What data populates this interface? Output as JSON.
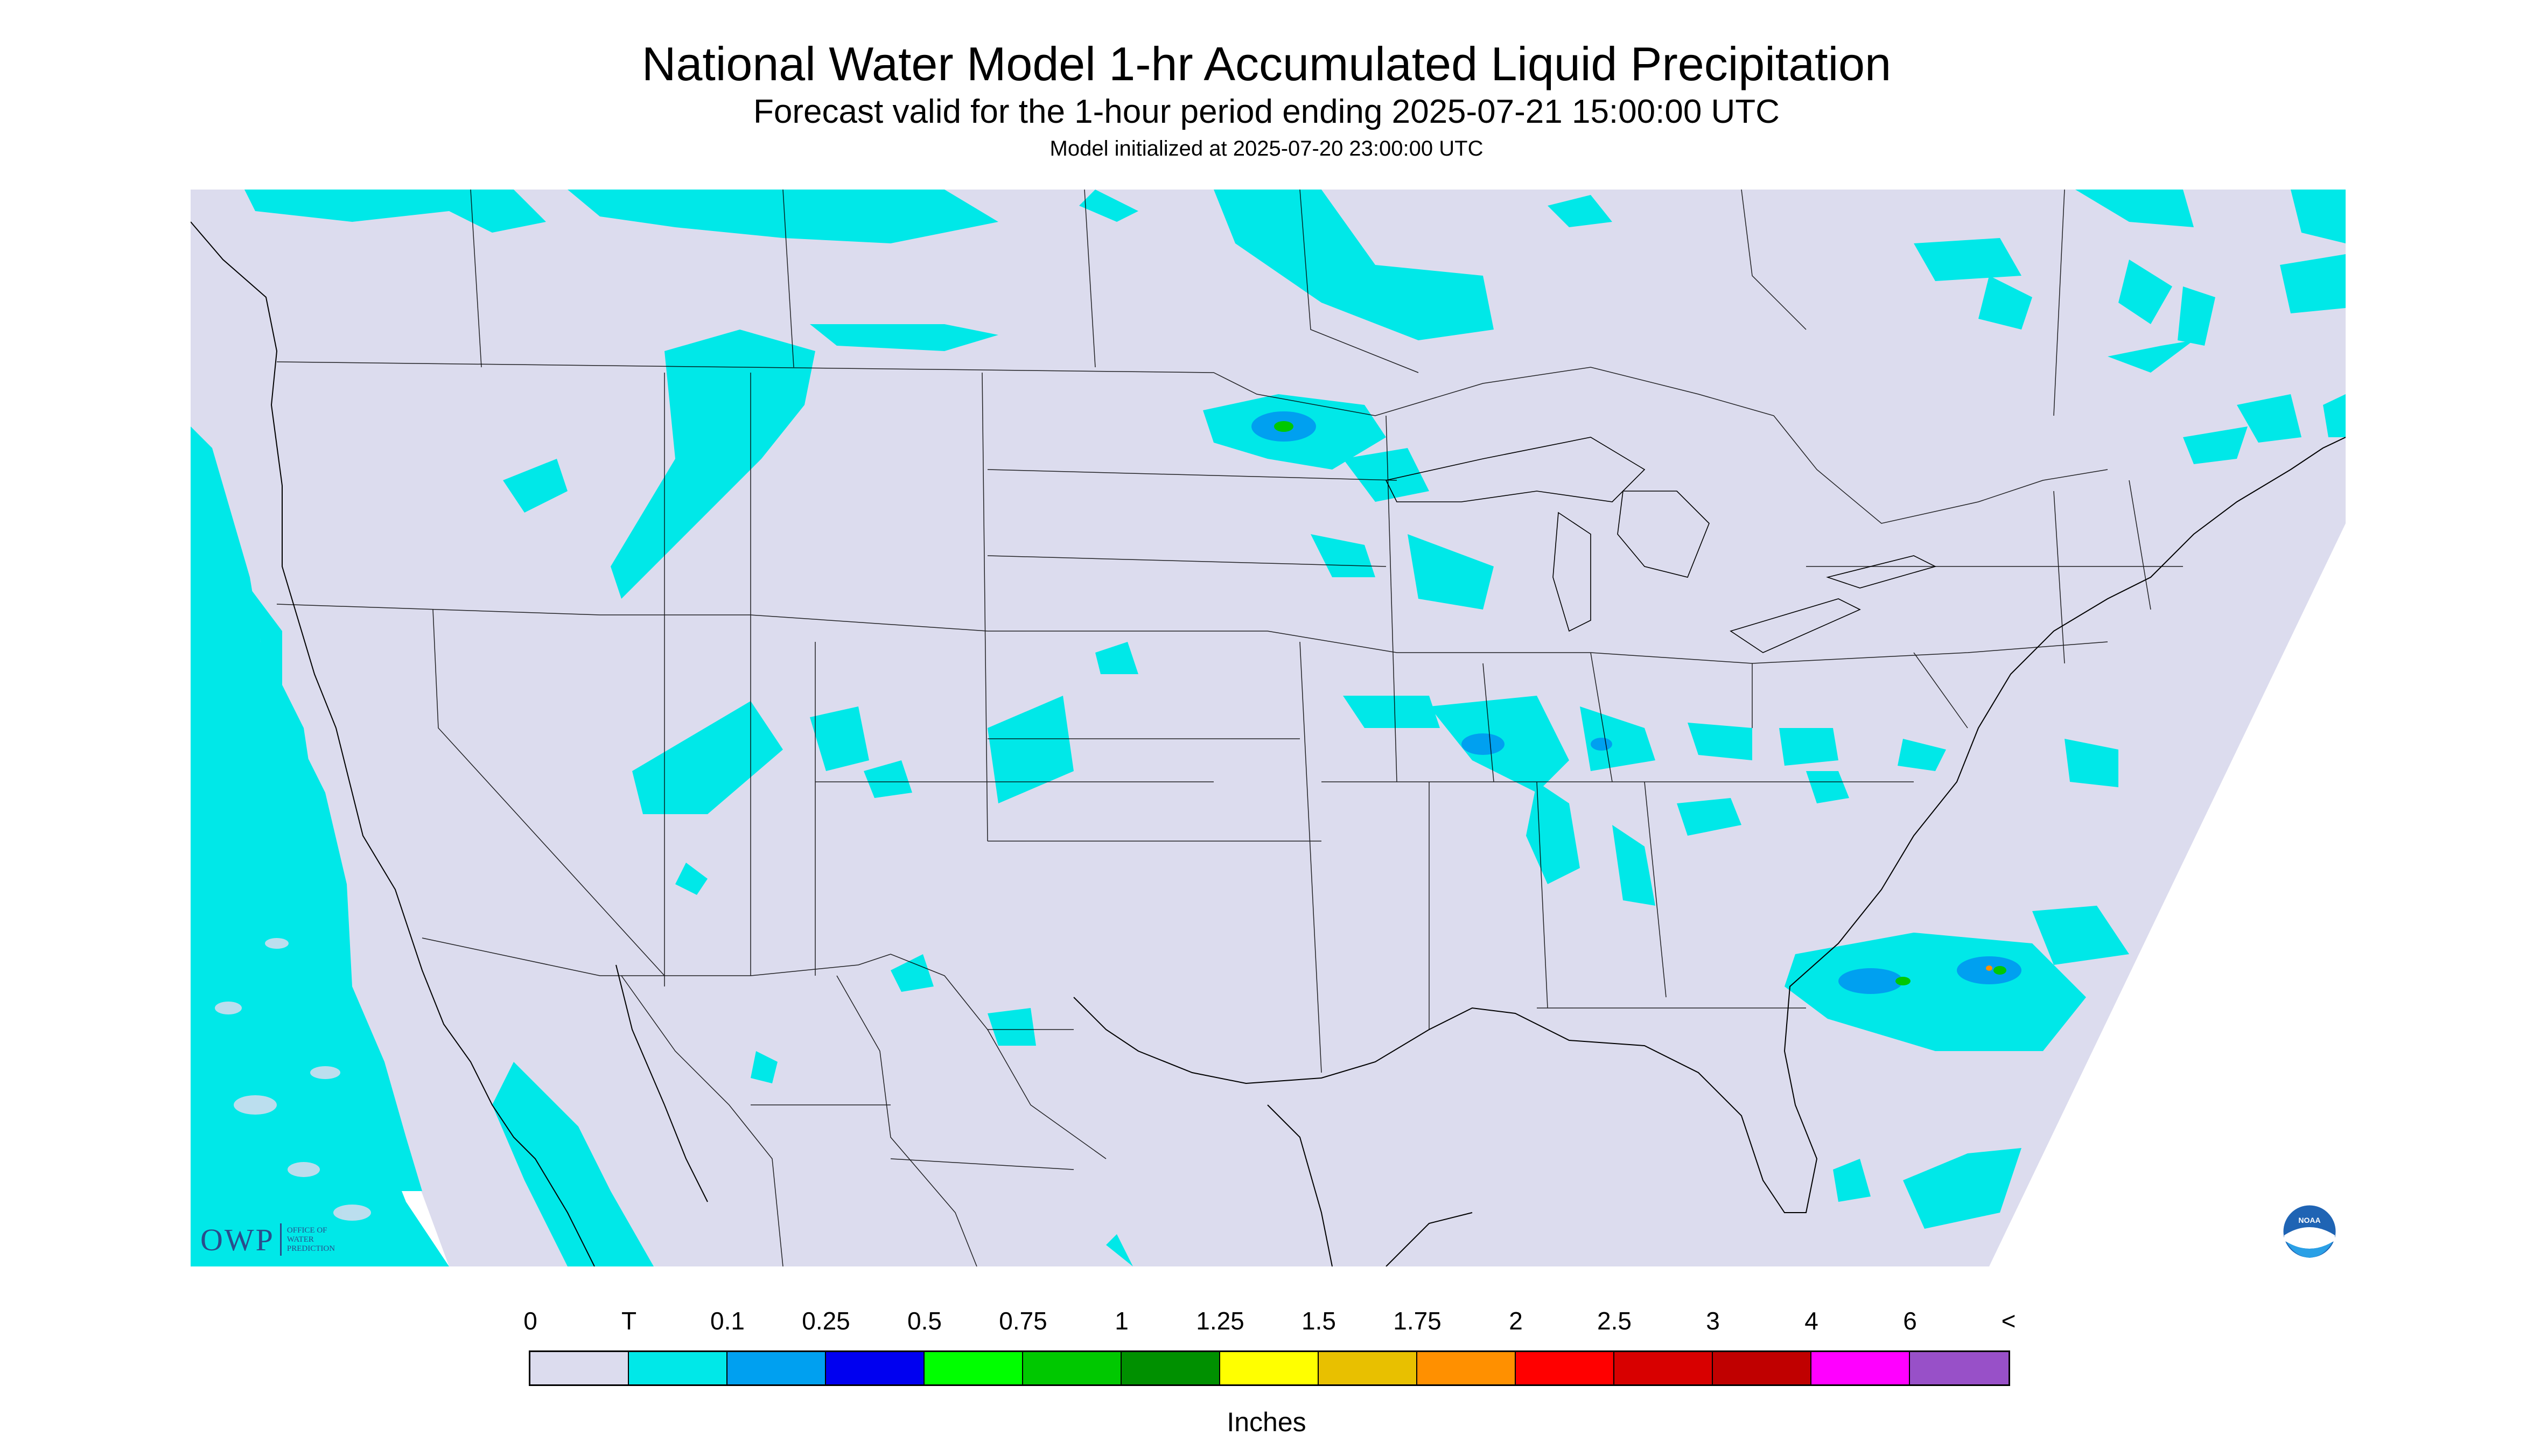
{
  "header": {
    "title": "National Water Model 1-hr Accumulated Liquid Precipitation",
    "subtitle": "Forecast valid for the 1-hour period ending 2025-07-21 15:00:00 UTC",
    "init": "Model initialized at 2025-07-20 23:00:00 UTC"
  },
  "logos": {
    "owp_text": "OWP",
    "owp_sub": "OFFICE OF\nWATER\nPREDICTION",
    "noaa_text": "NOAA"
  },
  "legend": {
    "units": "Inches",
    "labels": [
      "0",
      "T",
      "0.1",
      "0.25",
      "0.5",
      "0.75",
      "1",
      "1.25",
      "1.5",
      "1.75",
      "2",
      "2.5",
      "3",
      "4",
      "6",
      "<"
    ],
    "colors": [
      "#dcdcee",
      "#00e8e8",
      "#00a0f0",
      "#0000f0",
      "#00ff00",
      "#00c800",
      "#009000",
      "#ffff00",
      "#e8c000",
      "#ff9000",
      "#ff0000",
      "#d80000",
      "#c00000",
      "#ff00ff",
      "#9850c8"
    ]
  },
  "map": {
    "background_color": "#dcdcee",
    "outside_color": "#ffffff",
    "line_color": "#000000"
  }
}
